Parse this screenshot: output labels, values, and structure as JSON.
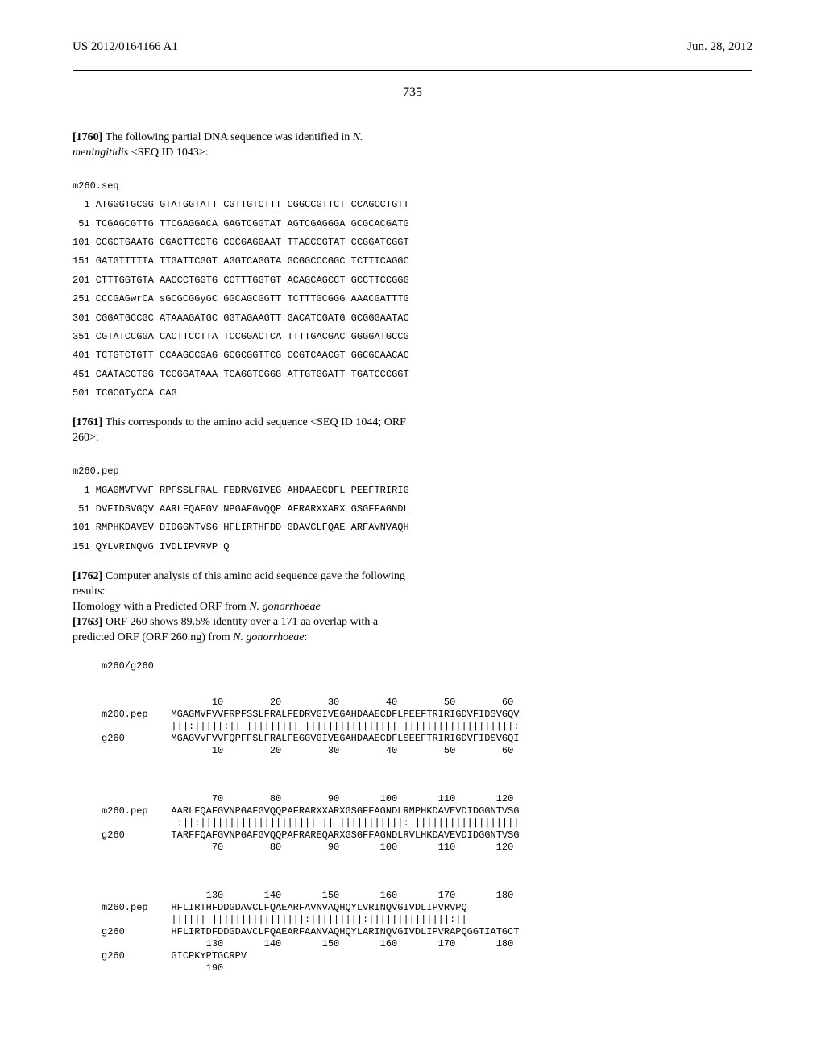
{
  "header": {
    "pub_number": "US 2012/0164166 A1",
    "pub_date": "Jun. 28, 2012",
    "page": "735"
  },
  "para1760": {
    "num": "[1760]",
    "text_before": "   The following partial DNA sequence was identified in ",
    "organism": "N. meningitidis",
    "text_after": " <SEQ ID 1043>:"
  },
  "dna": {
    "label": "m260.seq",
    "lines": [
      "  1 ATGGGTGCGG GTATGGTATT CGTTGTCTTT CGGCCGTTCT CCAGCCTGTT",
      " 51 TCGAGCGTTG TTCGAGGACA GAGTCGGTAT AGTCGAGGGA GCGCACGATG",
      "101 CCGCTGAATG CGACTTCCTG CCCGAGGAAT TTACCCGTAT CCGGATCGGT",
      "151 GATGTTTTTA TTGATTCGGT AGGTCAGGTA GCGGCCCGGC TCTTTCAGGC",
      "201 CTTTGGTGTA AACCCTGGTG CCTTTGGTGT ACAGCAGCCT GCCTTCCGGG",
      "251 CCCGAGwrCA sGCGCGGyGC GGCAGCGGTT TCTTTGCGGG AAACGATTTG",
      "301 CGGATGCCGC ATAAAGATGC GGTAGAAGTT GACATCGATG GCGGGAATAC",
      "351 CGTATCCGGA CACTTCCTTA TCCGGACTCA TTTTGACGAC GGGGATGCCG",
      "401 TCTGTCTGTT CCAAGCCGAG GCGCGGTTCG CCGTCAACGT GGCGCAACAC",
      "451 CAATACCTGG TCCGGATAAA TCAGGTCGGG ATTGTGGATT TGATCCCGGT",
      "501 TCGCGTyCCA CAG"
    ]
  },
  "para1761": {
    "num": "[1761]",
    "text": "   This corresponds to the amino acid sequence <SEQ ID 1044; ORF 260>:"
  },
  "pep": {
    "label": "m260.pep",
    "prefix": "  1 MGAG",
    "underlined": "MVFVVF RPFSSLFRAL F",
    "rest1": "EDRVGIVEG AHDAAECDFL PEEFTRIRIG",
    "line2": " 51 DVFIDSVGQV AARLFQAFGV NPGAFGVQQP AFRARXXARX GSGFFAGNDL",
    "line3": "101 RMPHKDAVEV DIDGGNTVSG HFLIRTHFDD GDAVCLFQAE ARFAVNVAQH",
    "line4": "151 QYLVRINQVG IVDLIPVRVP Q"
  },
  "para1762": {
    "num": "[1762]",
    "line1": "   Computer analysis of this amino acid sequence gave the following results:",
    "line2_before": "Homology with a Predicted ORF from ",
    "line2_organism": "N. gonorrhoeae"
  },
  "para1763": {
    "num": "[1763]",
    "text_before": "   ORF 260 shows 89.5% identity over a 171 aa overlap with a predicted ORF (ORF 260.ng) from ",
    "organism": "N. gonorrhoeae",
    "text_after": ":"
  },
  "alignment": {
    "title": "m260/g260",
    "block1": {
      "ruler_top": "                   10        20        30        40        50        60",
      "m_label": "m260.pep",
      "m_seq": "MGAGMVFVVFRPFSSLFRALFEDRVGIVEGAHDAAECDFLPEEFTRIRIGDVFIDSVGQV",
      "match": "|||:|||||:|| ||||||||| |||||||||||||||| |||||||||||||||||||:",
      "g_label": "g260",
      "g_seq": "MGAGVVFVVFQPFFSLFRALFEGGVGIVEGAHDAAECDFLSEEFTRIRIGDVFIDSVGQI",
      "ruler_bot": "                   10        20        30        40        50        60"
    },
    "block2": {
      "ruler_top": "                   70        80        90       100       110       120",
      "m_seq": "AARLFQAFGVNPGAFGVQQPAFRARXXARXGSGFFAGNDLRMPHKDAVEVDIDGGNTVSG",
      "match": " :||:|||||||||||||||||||| || |||||||||||: ||||||||||||||||||",
      "g_seq": "TARFFQAFGVNPGAFGVQQPAFRAREQARXGSGFFAGNDLRVLHKDAVEVDIDGGNTVSG",
      "ruler_bot": "                   70        80        90       100       110       120"
    },
    "block3": {
      "ruler_top": "                  130       140       150       160       170       180",
      "m_seq": "HFLIRTHFDDGDAVCLFQAEARFAVNVAQHQYLVRINQVGIVDLIPVRVPQ",
      "match": "|||||| ||||||||||||||||:|||||||||:||||||||||||||:||",
      "g_seq": "HFLIRTDFDDGDAVCLFQAEARFAANVAQHQYLARINQVGIVDLIPVRAPQGGTIATGCT",
      "ruler_bot": "                  130       140       150       160       170       180",
      "g_seq2": "GICPKYPTGCRPV",
      "ruler_bot2": "                  190"
    }
  }
}
